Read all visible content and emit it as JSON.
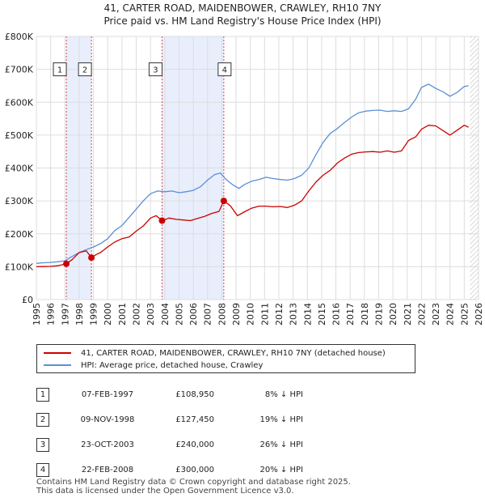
{
  "title_line1": "41, CARTER ROAD, MAIDENBOWER, CRAWLEY, RH10 7NY",
  "title_line2": "Price paid vs. HM Land Registry's House Price Index (HPI)",
  "legend": {
    "property": "41, CARTER ROAD, MAIDENBOWER, CRAWLEY, RH10 7NY (detached house)",
    "hpi": "HPI: Average price, detached house, Crawley"
  },
  "colors": {
    "property": "#cc0000",
    "hpi": "#5b8fd6",
    "shade": "#e8eefc",
    "grid": "#dddddd",
    "vline": "#cc0000"
  },
  "transactions": [
    {
      "num": "1",
      "date": "07-FEB-1997",
      "price": "£108,950",
      "hpi_rel": "8% ↓ HPI"
    },
    {
      "num": "2",
      "date": "09-NOV-1998",
      "price": "£127,450",
      "hpi_rel": "19% ↓ HPI"
    },
    {
      "num": "3",
      "date": "23-OCT-2003",
      "price": "£240,000",
      "hpi_rel": "26% ↓ HPI"
    },
    {
      "num": "4",
      "date": "22-FEB-2008",
      "price": "£300,000",
      "hpi_rel": "20% ↓ HPI"
    }
  ],
  "footer_line1": "Contains HM Land Registry data © Crown copyright and database right 2025.",
  "footer_line2": "This data is licensed under the Open Government Licence v3.0.",
  "chart_data": {
    "type": "line",
    "title": "41, CARTER ROAD, MAIDENBOWER, CRAWLEY, RH10 7NY",
    "subtitle": "Price paid vs. HM Land Registry's House Price Index (HPI)",
    "xlabel": "",
    "ylabel": "",
    "xlim": [
      1995,
      2026
    ],
    "ylim": [
      0,
      800000
    ],
    "grid": true,
    "legend_position": "bottom",
    "y_ticks": [
      {
        "value": 0,
        "label": "£0"
      },
      {
        "value": 100000,
        "label": "£100K"
      },
      {
        "value": 200000,
        "label": "£200K"
      },
      {
        "value": 300000,
        "label": "£300K"
      },
      {
        "value": 400000,
        "label": "£400K"
      },
      {
        "value": 500000,
        "label": "£500K"
      },
      {
        "value": 600000,
        "label": "£600K"
      },
      {
        "value": 700000,
        "label": "£700K"
      },
      {
        "value": 800000,
        "label": "£800K"
      }
    ],
    "x_ticks": [
      "1995",
      "1996",
      "1997",
      "1998",
      "1999",
      "2000",
      "2001",
      "2002",
      "2003",
      "2004",
      "2005",
      "2006",
      "2007",
      "2008",
      "2009",
      "2010",
      "2011",
      "2012",
      "2013",
      "2014",
      "2015",
      "2016",
      "2017",
      "2018",
      "2019",
      "2020",
      "2021",
      "2022",
      "2023",
      "2024",
      "2025",
      "2026"
    ],
    "shaded_spans": [
      [
        1997.1,
        1998.86
      ],
      [
        2003.81,
        2008.14
      ]
    ],
    "future_hatch_from": 2025.4,
    "series": [
      {
        "name": "41, CARTER ROAD, MAIDENBOWER, CRAWLEY, RH10 7NY (detached house)",
        "x": [
          1995.0,
          1995.5,
          1996.0,
          1996.5,
          1997.1,
          1997.5,
          1998.0,
          1998.5,
          1998.86,
          1999.2,
          1999.5,
          2000.0,
          2000.5,
          2001.0,
          2001.5,
          2002.0,
          2002.5,
          2003.0,
          2003.4,
          2003.81,
          2004.3,
          2004.8,
          2005.3,
          2005.8,
          2006.3,
          2006.8,
          2007.3,
          2007.8,
          2008.14,
          2008.6,
          2009.1,
          2009.6,
          2010.1,
          2010.6,
          2011.1,
          2011.6,
          2012.1,
          2012.6,
          2013.1,
          2013.6,
          2014.1,
          2014.6,
          2015.1,
          2015.6,
          2016.1,
          2016.6,
          2017.1,
          2017.6,
          2018.1,
          2018.6,
          2019.1,
          2019.6,
          2020.1,
          2020.6,
          2021.1,
          2021.6,
          2022.0,
          2022.5,
          2023.0,
          2023.5,
          2024.0,
          2024.5,
          2025.0,
          2025.3
        ],
        "values": [
          100000,
          100500,
          101000,
          103000,
          108950,
          121000,
          143000,
          148000,
          127450,
          137000,
          143000,
          160000,
          175000,
          185000,
          190000,
          208000,
          224000,
          248000,
          255000,
          240000,
          248000,
          244000,
          242000,
          240000,
          247000,
          253000,
          262000,
          268000,
          300000,
          285000,
          255000,
          267000,
          278000,
          284000,
          284000,
          282000,
          283000,
          280000,
          287000,
          300000,
          330000,
          357000,
          378000,
          393000,
          415000,
          430000,
          442000,
          447000,
          449000,
          450000,
          448000,
          452000,
          448000,
          452000,
          484000,
          495000,
          518000,
          530000,
          528000,
          514000,
          500000,
          515000,
          530000,
          524000
        ]
      },
      {
        "name": "HPI: Average price, detached house, Crawley",
        "x": [
          1995.0,
          1995.5,
          1996.0,
          1996.5,
          1997.0,
          1997.5,
          1998.0,
          1998.5,
          1999.0,
          1999.5,
          2000.0,
          2000.5,
          2001.0,
          2001.5,
          2002.0,
          2002.5,
          2003.0,
          2003.5,
          2004.0,
          2004.5,
          2005.0,
          2005.5,
          2006.0,
          2006.5,
          2007.0,
          2007.5,
          2007.9,
          2008.3,
          2008.8,
          2009.2,
          2009.6,
          2010.1,
          2010.6,
          2011.1,
          2011.6,
          2012.1,
          2012.6,
          2013.1,
          2013.6,
          2014.1,
          2014.6,
          2015.1,
          2015.6,
          2016.1,
          2016.6,
          2017.1,
          2017.6,
          2018.1,
          2018.6,
          2019.1,
          2019.6,
          2020.1,
          2020.6,
          2021.1,
          2021.6,
          2022.0,
          2022.5,
          2023.0,
          2023.5,
          2024.0,
          2024.5,
          2025.0,
          2025.3
        ],
        "values": [
          110000,
          112000,
          113000,
          115000,
          118000,
          131000,
          143000,
          152000,
          160000,
          170000,
          185000,
          210000,
          225000,
          250000,
          275000,
          300000,
          322000,
          330000,
          328000,
          330000,
          325000,
          328000,
          332000,
          343000,
          363000,
          380000,
          385000,
          365000,
          348000,
          338000,
          350000,
          360000,
          365000,
          372000,
          368000,
          365000,
          363000,
          368000,
          378000,
          400000,
          440000,
          478000,
          505000,
          520000,
          538000,
          555000,
          568000,
          573000,
          575000,
          576000,
          572000,
          574000,
          572000,
          580000,
          610000,
          645000,
          655000,
          642000,
          632000,
          618000,
          630000,
          648000,
          650000
        ]
      }
    ],
    "sales": [
      {
        "label": "1",
        "x": 1997.1,
        "value": 108950
      },
      {
        "label": "2",
        "x": 1998.86,
        "value": 127450
      },
      {
        "label": "3",
        "x": 2003.81,
        "value": 240000
      },
      {
        "label": "4",
        "x": 2008.14,
        "value": 300000
      }
    ],
    "marker_box_value": 700000
  }
}
